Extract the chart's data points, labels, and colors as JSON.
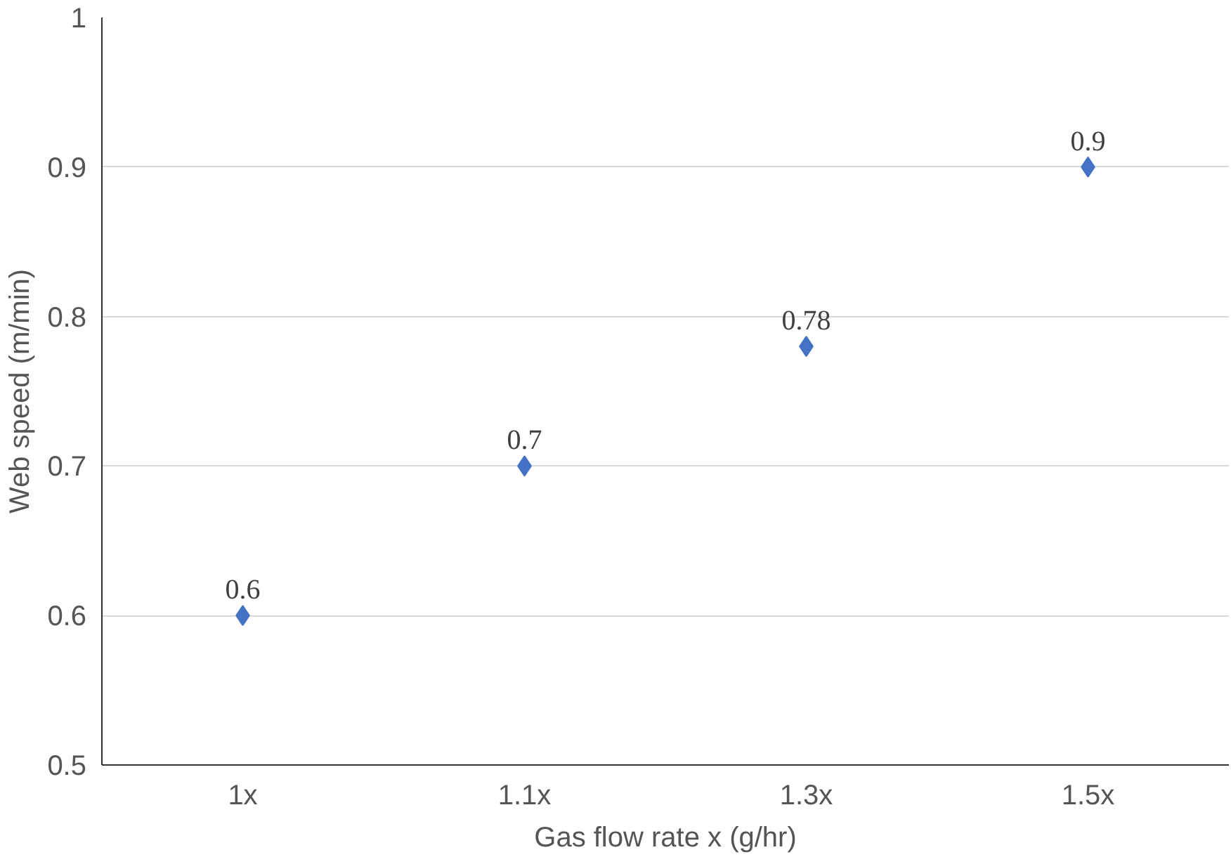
{
  "chart_data": {
    "type": "scatter",
    "xlabel": "Gas flow rate x (g/hr)",
    "ylabel": "Web speed (m/min)",
    "categories": [
      "1x",
      "1.1x",
      "1.3x",
      "1.5x"
    ],
    "series": [
      {
        "color": "#4472c4",
        "values": [
          0.6,
          0.7,
          0.78,
          0.9
        ]
      }
    ],
    "ylim": [
      0.5,
      1
    ],
    "yticks": [
      0.5,
      0.6,
      0.7,
      0.8,
      0.9,
      1
    ],
    "grid": "y",
    "marker": "diamond",
    "data_labels": true
  }
}
